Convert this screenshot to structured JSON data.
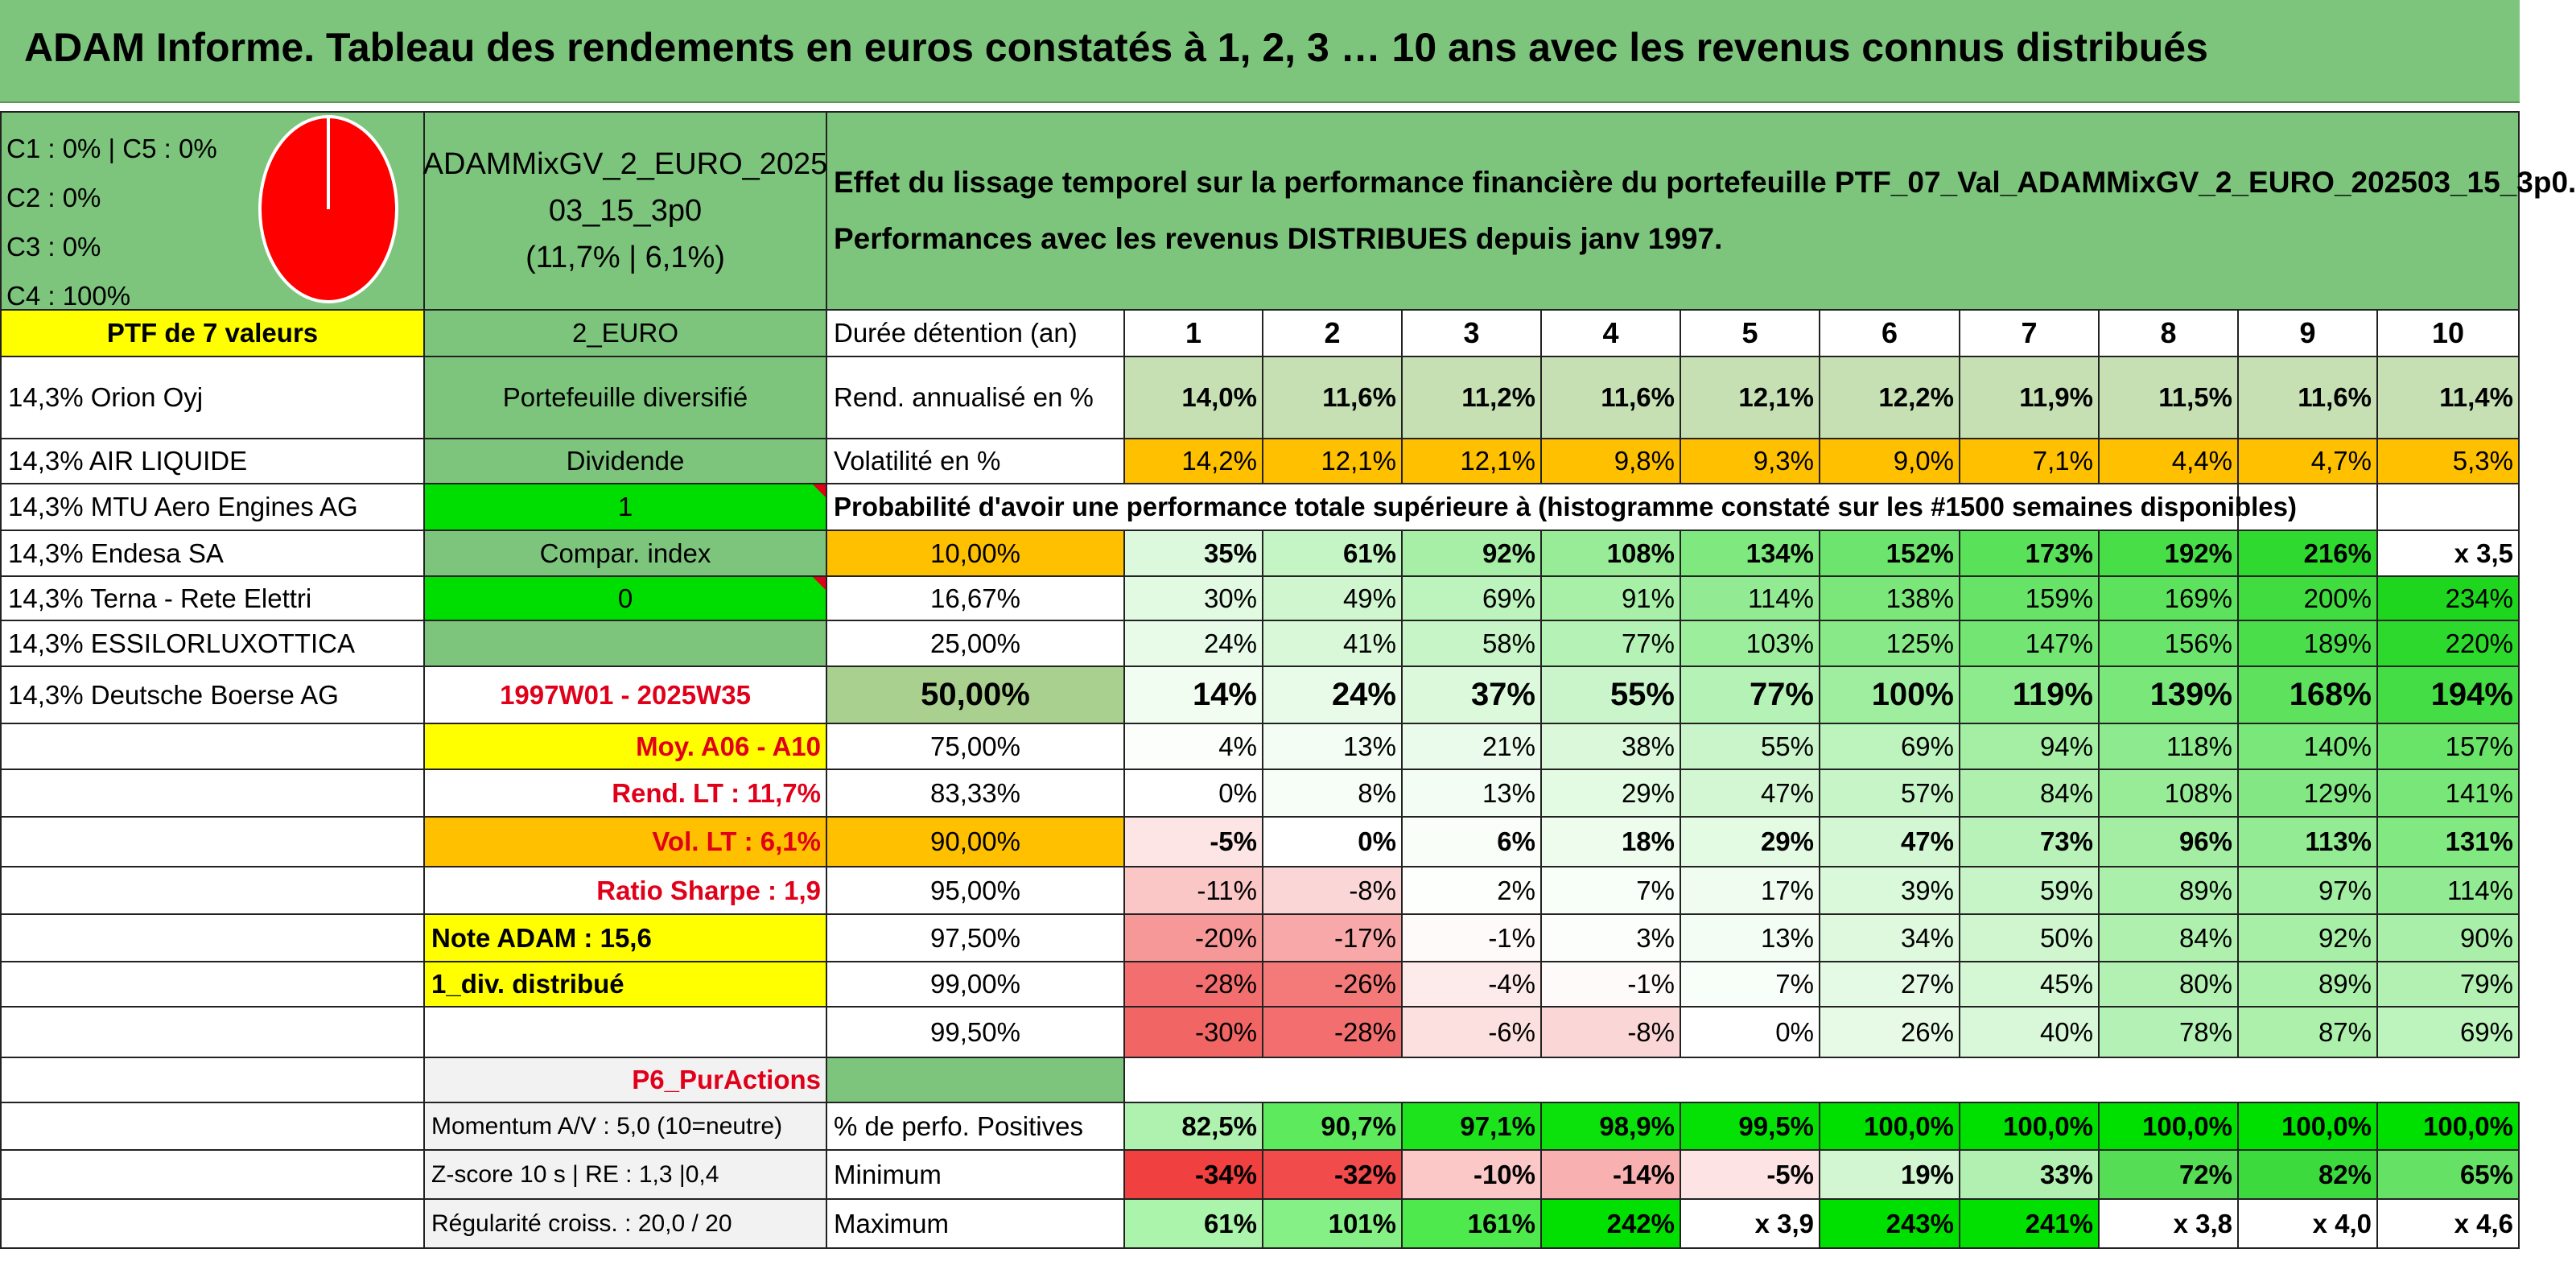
{
  "title": "ADAM Informe. Tableau des rendements en euros constatés à 1, 2, 3 … 10 ans avec les revenus connus distribués",
  "classes": [
    "C1 : 0% | C5 : 0%",
    "C2 : 0%",
    "C3 : 0%",
    "C4 : 100%"
  ],
  "pie": {
    "slices": [
      {
        "name": "C4",
        "value": 100,
        "color": "#ff0000"
      }
    ]
  },
  "fund": {
    "name_line1": "ADAMMixGV_2_EURO_2025",
    "name_line2": "03_15_3p0",
    "stats": "(11,7% | 6,1%)"
  },
  "description": {
    "line1": "Effet du lissage temporel sur la performance financière du portefeuille PTF_07_Val_ADAMMixGV_2_EURO_202503_15_3p0.",
    "line2": "Performances avec les revenus DISTRIBUES depuis janv 1997."
  },
  "portfolio": {
    "header": "PTF de 7 valeurs",
    "holdings": [
      "14,3% Orion Oyj",
      "14,3% AIR LIQUIDE",
      "14,3% MTU Aero Engines AG",
      "14,3% Endesa SA",
      "14,3% Terna - Rete Elettri",
      "14,3% ESSILORLUXOTTICA",
      "14,3% Deutsche Boerse AG"
    ]
  },
  "info": {
    "currency": "2_EURO",
    "type": "Portefeuille diversifié",
    "income": "Dividende",
    "value1": "1",
    "index_label": "Compar. index",
    "value0": "0",
    "period": "1997W01 - 2025W35",
    "moy": "Moy. A06 - A10",
    "rend_lt": "Rend. LT : 11,7%",
    "vol_lt": "Vol. LT : 6,1%",
    "sharpe": "Ratio Sharpe : 1,9",
    "note": "Note ADAM : 15,6",
    "div": "1_div. distribué",
    "strategy": "P6_PurActions",
    "momentum": "Momentum A/V : 5,0 (10=neutre)",
    "zscore": "Z-score 10 s | RE : 1,3 |0,4",
    "regularity": "Régularité croiss. : 20,0 / 20"
  },
  "table": {
    "duration_label": "Durée détention (an)",
    "years": [
      "1",
      "2",
      "3",
      "4",
      "5",
      "6",
      "7",
      "8",
      "9",
      "10"
    ],
    "rend_label": "Rend. annualisé en %",
    "rend": [
      "14,0%",
      "11,6%",
      "11,2%",
      "11,6%",
      "12,1%",
      "12,2%",
      "11,9%",
      "11,5%",
      "11,6%",
      "11,4%"
    ],
    "vol_label": "Volatilité en %",
    "vol": [
      "14,2%",
      "12,1%",
      "12,1%",
      "9,8%",
      "9,3%",
      "9,0%",
      "7,1%",
      "4,4%",
      "4,7%",
      "5,3%"
    ],
    "prob_title": "Probabilité d'avoir une performance totale supérieure à (histogramme constaté sur les #1500 semaines disponibles)",
    "prob_rows": [
      {
        "p": "10,00%",
        "v": [
          "35%",
          "61%",
          "92%",
          "108%",
          "134%",
          "152%",
          "173%",
          "192%",
          "216%",
          "x 3,5"
        ]
      },
      {
        "p": "16,67%",
        "v": [
          "30%",
          "49%",
          "69%",
          "91%",
          "114%",
          "138%",
          "159%",
          "169%",
          "200%",
          "234%"
        ]
      },
      {
        "p": "25,00%",
        "v": [
          "24%",
          "41%",
          "58%",
          "77%",
          "103%",
          "125%",
          "147%",
          "156%",
          "189%",
          "220%"
        ]
      },
      {
        "p": "50,00%",
        "v": [
          "14%",
          "24%",
          "37%",
          "55%",
          "77%",
          "100%",
          "119%",
          "139%",
          "168%",
          "194%"
        ]
      },
      {
        "p": "75,00%",
        "v": [
          "4%",
          "13%",
          "21%",
          "38%",
          "55%",
          "69%",
          "94%",
          "118%",
          "140%",
          "157%"
        ]
      },
      {
        "p": "83,33%",
        "v": [
          "0%",
          "8%",
          "13%",
          "29%",
          "47%",
          "57%",
          "84%",
          "108%",
          "129%",
          "141%"
        ]
      },
      {
        "p": "90,00%",
        "v": [
          "-5%",
          "0%",
          "6%",
          "18%",
          "29%",
          "47%",
          "73%",
          "96%",
          "113%",
          "131%"
        ]
      },
      {
        "p": "95,00%",
        "v": [
          "-11%",
          "-8%",
          "2%",
          "7%",
          "17%",
          "39%",
          "59%",
          "89%",
          "97%",
          "114%"
        ]
      },
      {
        "p": "97,50%",
        "v": [
          "-20%",
          "-17%",
          "-1%",
          "3%",
          "13%",
          "34%",
          "50%",
          "84%",
          "92%",
          "90%"
        ]
      },
      {
        "p": "99,00%",
        "v": [
          "-28%",
          "-26%",
          "-4%",
          "-1%",
          "7%",
          "27%",
          "45%",
          "80%",
          "89%",
          "79%"
        ]
      },
      {
        "p": "99,50%",
        "v": [
          "-30%",
          "-28%",
          "-6%",
          "-8%",
          "0%",
          "26%",
          "40%",
          "78%",
          "87%",
          "69%"
        ]
      }
    ],
    "pos_label": "% de perfo. Positives",
    "pos": [
      "82,5%",
      "90,7%",
      "97,1%",
      "98,9%",
      "99,5%",
      "100,0%",
      "100,0%",
      "100,0%",
      "100,0%",
      "100,0%"
    ],
    "min_label": "Minimum",
    "min": [
      "-34%",
      "-32%",
      "-10%",
      "-14%",
      "-5%",
      "19%",
      "33%",
      "72%",
      "82%",
      "65%"
    ],
    "max_label": "Maximum",
    "max": [
      "61%",
      "101%",
      "161%",
      "242%",
      "x 3,9",
      "243%",
      "241%",
      "x 3,8",
      "x 4,0",
      "x 4,6"
    ]
  },
  "colors": {
    "header_green": "#7dc57d",
    "yellow": "#ffff00",
    "orange": "#ffc000",
    "bright_green": "#00dd00",
    "rend_green": "#c6e0b4",
    "light_grey": "#f2f2f2",
    "red_text": "#e0001a"
  }
}
